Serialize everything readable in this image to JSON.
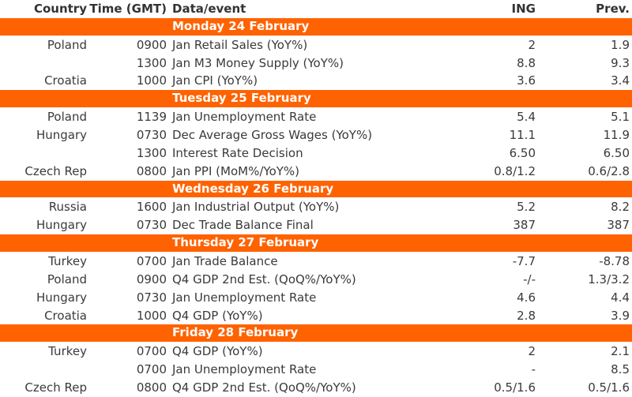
{
  "header": {
    "country": "Country",
    "time": "Time (GMT)",
    "event": "Data/event",
    "ing": "ING",
    "prev": "Prev."
  },
  "colors": {
    "accent": "#FF6200",
    "text": "#3a3a3a"
  },
  "days": [
    {
      "label": "Monday 24 February",
      "rows": [
        {
          "country": "Poland",
          "time": "0900",
          "event": "Jan Retail Sales (YoY%)",
          "ing": "2",
          "prev": "1.9"
        },
        {
          "country": "",
          "time": "1300",
          "event": "Jan M3 Money Supply (YoY%)",
          "ing": "8.8",
          "prev": "9.3"
        },
        {
          "country": "Croatia",
          "time": "1000",
          "event": "Jan CPI (YoY%)",
          "ing": "3.6",
          "prev": "3.4"
        }
      ]
    },
    {
      "label": "Tuesday 25 February",
      "rows": [
        {
          "country": "Poland",
          "time": "1139",
          "event": "Jan Unemployment Rate",
          "ing": "5.4",
          "prev": "5.1"
        },
        {
          "country": "Hungary",
          "time": "0730",
          "event": "Dec Average Gross Wages (YoY%)",
          "ing": "11.1",
          "prev": "11.9"
        },
        {
          "country": "",
          "time": "1300",
          "event": "Interest Rate Decision",
          "ing": "6.50",
          "prev": "6.50"
        },
        {
          "country": "Czech Rep",
          "time": "0800",
          "event": "Jan PPI (MoM%/YoY%)",
          "ing": "0.8/1.2",
          "prev": "0.6/2.8"
        }
      ]
    },
    {
      "label": "Wednesday 26 February",
      "rows": [
        {
          "country": "Russia",
          "time": "1600",
          "event": "Jan Industrial Output (YoY%)",
          "ing": "5.2",
          "prev": "8.2"
        },
        {
          "country": "Hungary",
          "time": "0730",
          "event": "Dec Trade Balance Final",
          "ing": "387",
          "prev": "387"
        }
      ]
    },
    {
      "label": "Thursday 27 February",
      "rows": [
        {
          "country": "Turkey",
          "time": "0700",
          "event": "Jan Trade Balance",
          "ing": "-7.7",
          "prev": "-8.78"
        },
        {
          "country": "Poland",
          "time": "0900",
          "event": "Q4 GDP 2nd Est. (QoQ%/YoY%)",
          "ing": "-/-",
          "prev": "1.3/3.2"
        },
        {
          "country": "Hungary",
          "time": "0730",
          "event": "Jan Unemployment Rate",
          "ing": "4.6",
          "prev": "4.4"
        },
        {
          "country": "Croatia",
          "time": "1000",
          "event": "Q4 GDP (YoY%)",
          "ing": "2.8",
          "prev": "3.9"
        }
      ]
    },
    {
      "label": "Friday 28 February",
      "rows": [
        {
          "country": "Turkey",
          "time": "0700",
          "event": "Q4 GDP (YoY%)",
          "ing": "2",
          "prev": "2.1"
        },
        {
          "country": "",
          "time": "0700",
          "event": "Jan Unemployment Rate",
          "ing": "-",
          "prev": "8.5"
        },
        {
          "country": "Czech Rep",
          "time": "0800",
          "event": "Q4 GDP 2nd Est. (QoQ%/YoY%)",
          "ing": "0.5/1.6",
          "prev": "0.5/1.6"
        }
      ]
    }
  ]
}
